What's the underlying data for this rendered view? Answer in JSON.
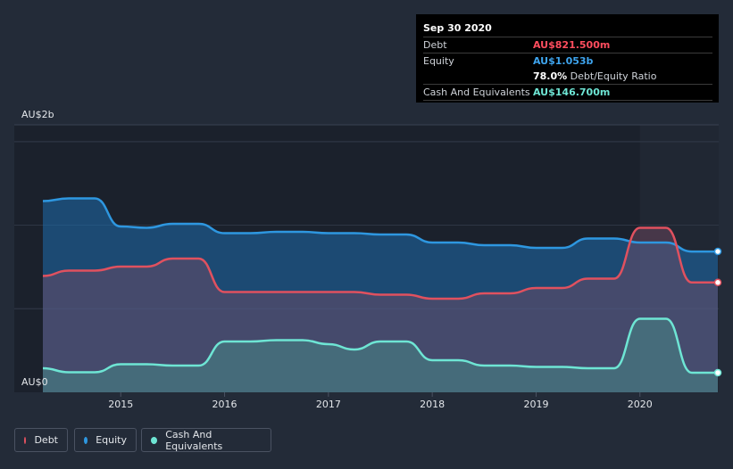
{
  "tooltip": {
    "date": "Sep 30 2020",
    "debt_label": "Debt",
    "debt_value": "AU$821.500m",
    "equity_label": "Equity",
    "equity_value": "AU$1.053b",
    "ratio_value": "78.0%",
    "ratio_label": "Debt/Equity Ratio",
    "cash_label": "Cash And Equivalents",
    "cash_value": "AU$146.700m"
  },
  "legend": {
    "debt": "Debt",
    "equity": "Equity",
    "cash": "Cash And Equivalents"
  },
  "colors": {
    "debt": "#e0515f",
    "equity": "#2e97e0",
    "cash": "#6ee5d4"
  },
  "chart_data": {
    "type": "area",
    "title": "",
    "xlabel": "",
    "ylabel": "",
    "y_tick_labels": [
      "AU$2b",
      "AU$0"
    ],
    "ylim": [
      0,
      2.0
    ],
    "xlim": [
      2014.25,
      2020.75
    ],
    "x_ticks": [
      2015,
      2016,
      2017,
      2018,
      2019,
      2020
    ],
    "x_tick_labels": [
      "2015",
      "2016",
      "2017",
      "2018",
      "2019",
      "2020"
    ],
    "grid": true,
    "legend_position": "bottom-left",
    "unit": "AU$ billions",
    "series": [
      {
        "name": "Equity",
        "key": "equity",
        "points": [
          [
            2014.25,
            1.43
          ],
          [
            2014.5,
            1.45
          ],
          [
            2014.75,
            1.45
          ],
          [
            2015.0,
            1.24
          ],
          [
            2015.25,
            1.23
          ],
          [
            2015.5,
            1.26
          ],
          [
            2015.75,
            1.26
          ],
          [
            2016.0,
            1.19
          ],
          [
            2016.25,
            1.19
          ],
          [
            2016.5,
            1.2
          ],
          [
            2016.75,
            1.2
          ],
          [
            2017.0,
            1.19
          ],
          [
            2017.25,
            1.19
          ],
          [
            2017.5,
            1.18
          ],
          [
            2017.75,
            1.18
          ],
          [
            2018.0,
            1.12
          ],
          [
            2018.25,
            1.12
          ],
          [
            2018.5,
            1.1
          ],
          [
            2018.75,
            1.1
          ],
          [
            2019.0,
            1.08
          ],
          [
            2019.25,
            1.08
          ],
          [
            2019.5,
            1.15
          ],
          [
            2019.75,
            1.15
          ],
          [
            2020.0,
            1.12
          ],
          [
            2020.25,
            1.12
          ],
          [
            2020.5,
            1.053
          ],
          [
            2020.75,
            1.053
          ]
        ]
      },
      {
        "name": "Debt",
        "key": "debt",
        "points": [
          [
            2014.25,
            0.87
          ],
          [
            2014.5,
            0.91
          ],
          [
            2014.75,
            0.91
          ],
          [
            2015.0,
            0.94
          ],
          [
            2015.25,
            0.94
          ],
          [
            2015.5,
            1.0
          ],
          [
            2015.75,
            1.0
          ],
          [
            2016.0,
            0.75
          ],
          [
            2016.25,
            0.75
          ],
          [
            2016.5,
            0.75
          ],
          [
            2016.75,
            0.75
          ],
          [
            2017.0,
            0.75
          ],
          [
            2017.25,
            0.75
          ],
          [
            2017.5,
            0.73
          ],
          [
            2017.75,
            0.73
          ],
          [
            2018.0,
            0.7
          ],
          [
            2018.25,
            0.7
          ],
          [
            2018.5,
            0.74
          ],
          [
            2018.75,
            0.74
          ],
          [
            2019.0,
            0.78
          ],
          [
            2019.25,
            0.78
          ],
          [
            2019.5,
            0.85
          ],
          [
            2019.75,
            0.85
          ],
          [
            2020.0,
            1.23
          ],
          [
            2020.25,
            1.23
          ],
          [
            2020.5,
            0.8215
          ],
          [
            2020.75,
            0.8215
          ]
        ]
      },
      {
        "name": "Cash And Equivalents",
        "key": "cash",
        "points": [
          [
            2014.25,
            0.18
          ],
          [
            2014.5,
            0.15
          ],
          [
            2014.75,
            0.15
          ],
          [
            2015.0,
            0.21
          ],
          [
            2015.25,
            0.21
          ],
          [
            2015.5,
            0.2
          ],
          [
            2015.75,
            0.2
          ],
          [
            2016.0,
            0.38
          ],
          [
            2016.25,
            0.38
          ],
          [
            2016.5,
            0.39
          ],
          [
            2016.75,
            0.39
          ],
          [
            2017.0,
            0.36
          ],
          [
            2017.25,
            0.32
          ],
          [
            2017.5,
            0.38
          ],
          [
            2017.75,
            0.38
          ],
          [
            2018.0,
            0.24
          ],
          [
            2018.25,
            0.24
          ],
          [
            2018.5,
            0.2
          ],
          [
            2018.75,
            0.2
          ],
          [
            2019.0,
            0.19
          ],
          [
            2019.25,
            0.19
          ],
          [
            2019.5,
            0.18
          ],
          [
            2019.75,
            0.18
          ],
          [
            2020.0,
            0.55
          ],
          [
            2020.25,
            0.55
          ],
          [
            2020.5,
            0.1467
          ],
          [
            2020.75,
            0.1467
          ]
        ]
      }
    ]
  }
}
